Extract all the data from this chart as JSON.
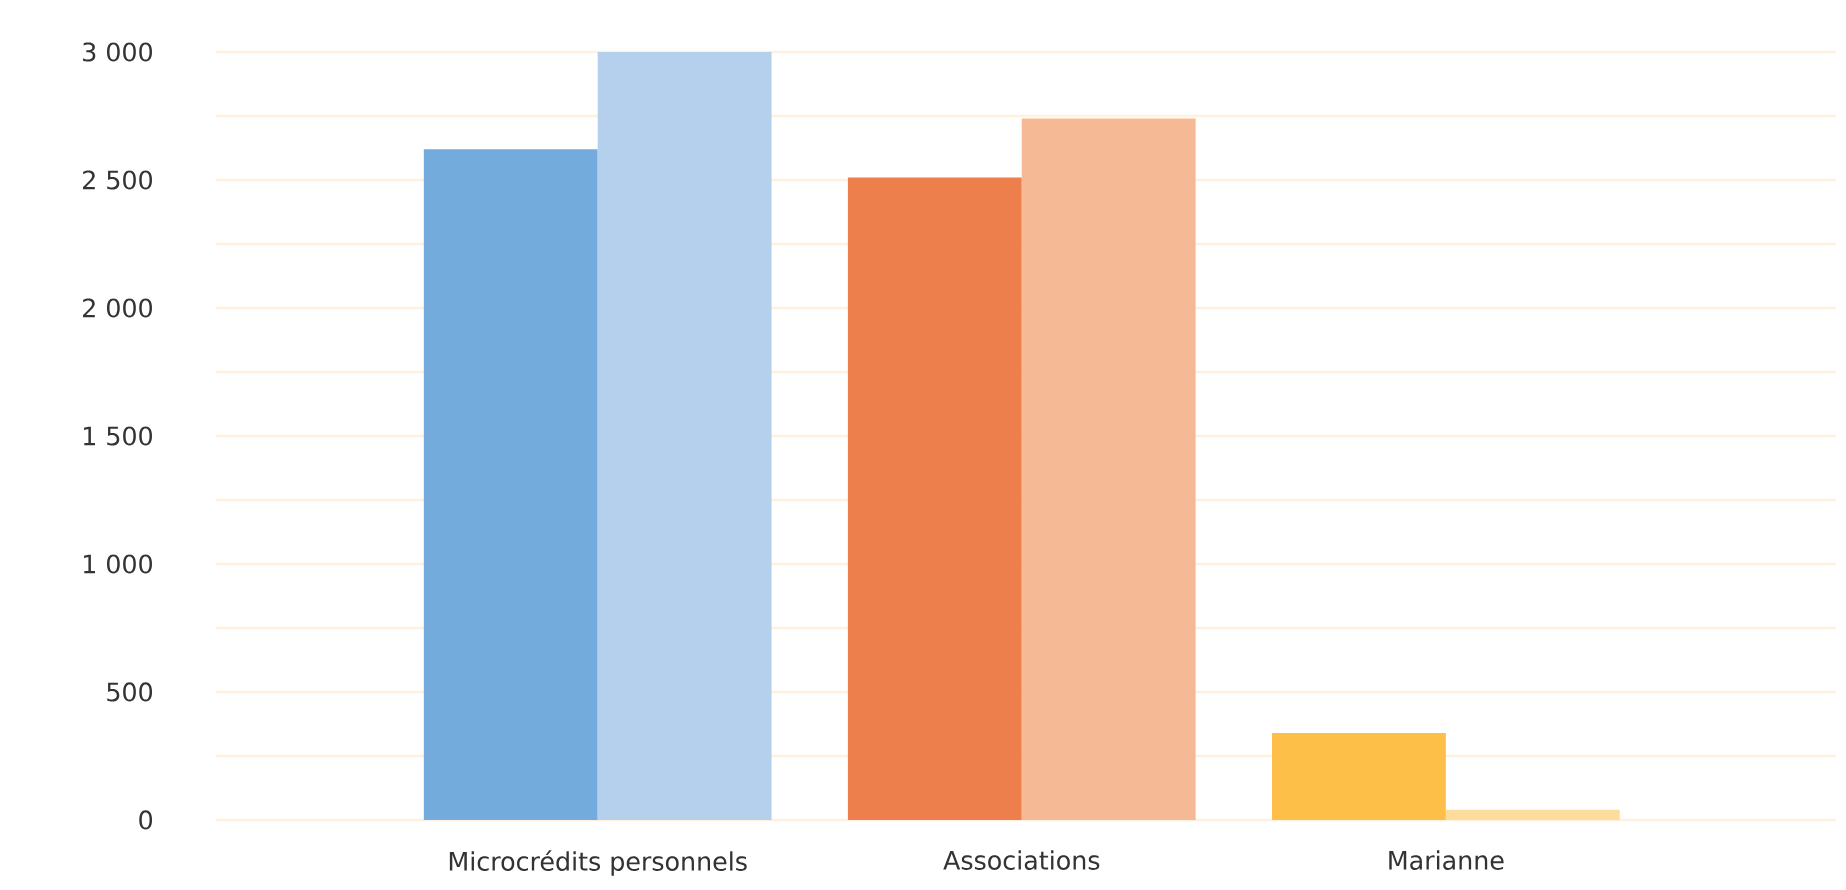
{
  "chart_data": {
    "type": "bar",
    "categories": [
      "Microcrédits personnels",
      "Associations",
      "Marianne"
    ],
    "series": [
      {
        "colors": [
          "#73acdc",
          "#ed7f4c",
          "#fdbf47"
        ],
        "values": [
          2620,
          2510,
          340
        ]
      },
      {
        "colors": [
          "#b5d0ec",
          "#f5b996",
          "#fddc9c"
        ],
        "values": [
          3000,
          2740,
          40
        ]
      }
    ],
    "ylim": [
      0,
      3000
    ],
    "yticks": [
      0,
      {
        "value": 250,
        "label": null
      },
      500,
      {
        "value": 750,
        "label": null
      },
      {
        "value": 1000,
        "label": "1 000"
      },
      {
        "value": 1250,
        "label": null
      },
      {
        "value": 1500,
        "label": "1 500"
      },
      {
        "value": 1750,
        "label": null
      },
      {
        "value": 2000,
        "label": "2 000"
      },
      {
        "value": 2250,
        "label": null
      },
      {
        "value": 2500,
        "label": "2 500"
      },
      {
        "value": 2750,
        "label": null
      },
      {
        "value": 3000,
        "label": "3 000"
      }
    ],
    "grid": "y"
  }
}
